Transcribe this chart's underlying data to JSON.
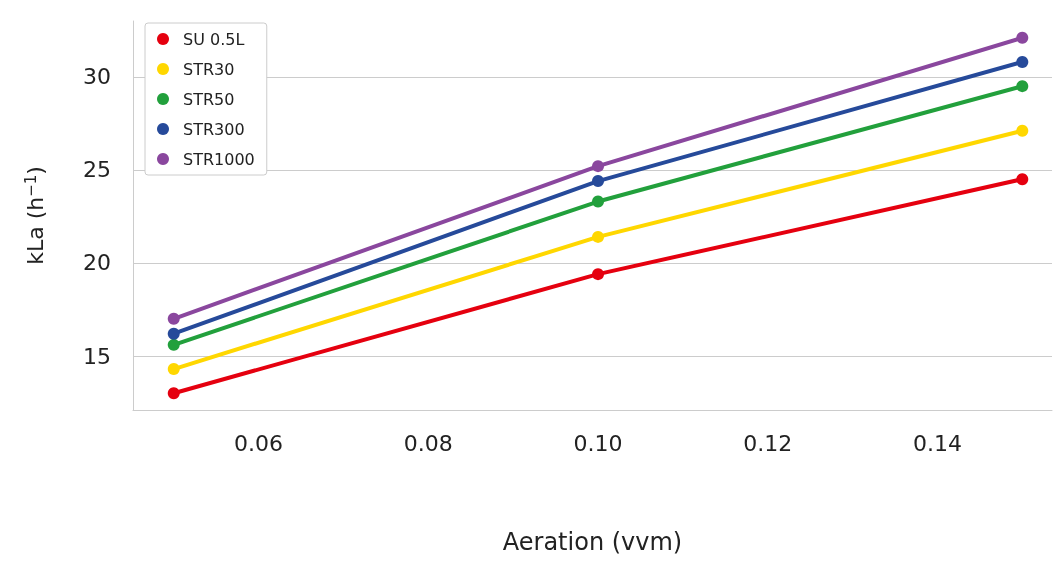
{
  "chart_data": {
    "type": "line",
    "xlabel": "Aeration (vvm)",
    "ylabel": "kLa (h$^{−1}$)",
    "x": [
      0.05,
      0.1,
      0.15
    ],
    "series": [
      {
        "name": "SU 0.5L",
        "color": "#e5000f",
        "values": [
          13.0,
          19.4,
          24.5
        ]
      },
      {
        "name": "STR30",
        "color": "#ffd700",
        "values": [
          14.3,
          21.4,
          27.1
        ]
      },
      {
        "name": "STR50",
        "color": "#22a03c",
        "values": [
          15.6,
          23.3,
          29.5
        ]
      },
      {
        "name": "STR300",
        "color": "#264a9a",
        "values": [
          16.2,
          24.4,
          30.8
        ]
      },
      {
        "name": "STR1000",
        "color": "#8a479e",
        "values": [
          17.0,
          25.2,
          32.1
        ]
      }
    ],
    "xlim": [
      0.0452,
      0.1535
    ],
    "xticks": [
      {
        "value": 0.06,
        "label": "0.06"
      },
      {
        "value": 0.08,
        "label": "0.08"
      },
      {
        "value": 0.1,
        "label": "0.10"
      },
      {
        "value": 0.12,
        "label": "0.12"
      },
      {
        "value": 0.14,
        "label": "0.14"
      }
    ],
    "ylim": [
      12.1,
      33
    ],
    "yticks": [
      15,
      20,
      25,
      30
    ],
    "grid": "y",
    "legend": "top left",
    "marker": "circle",
    "line_style": "solid"
  }
}
